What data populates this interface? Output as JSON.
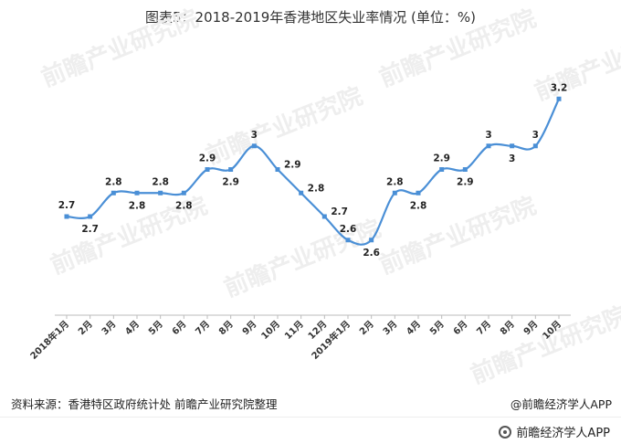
{
  "title": "图表5：2018-2019年香港地区失业率情况 (单位：%)",
  "source": "资料来源：香港特区政府统计处 前瞻产业研究院整理",
  "brand_right": "@前瞻经济学人APP",
  "footer_brand": "前瞻经济学人APP",
  "watermark": "前瞻产业研究院",
  "colors": {
    "line": "#4a8fd6",
    "label": "#222222",
    "axis": "#bbbbbb"
  },
  "chart_data": {
    "type": "line",
    "categories": [
      "2018年1月",
      "2月",
      "3月",
      "4月",
      "5月",
      "6月",
      "7月",
      "8月",
      "9月",
      "10月",
      "11月",
      "12月",
      "2019年1月",
      "2月",
      "3月",
      "4月",
      "5月",
      "6月",
      "7月",
      "8月",
      "9月",
      "10月"
    ],
    "series": [
      {
        "values": [
          2.7,
          2.7,
          2.8,
          2.8,
          2.8,
          2.8,
          2.9,
          2.9,
          3,
          2.9,
          2.8,
          2.7,
          2.6,
          2.6,
          2.8,
          2.8,
          2.9,
          2.9,
          3,
          3,
          3,
          3.2
        ]
      }
    ],
    "data_labels": [
      "2.7",
      "2.7",
      "2.8",
      "2.8",
      "2.8",
      "2.8",
      "2.9",
      "2.9",
      "3",
      "2.9",
      "2.8",
      "2.7",
      "2.6",
      "2.6",
      "2.8",
      "2.8",
      "2.9",
      "2.9",
      "3",
      "3",
      "3",
      "3.2"
    ],
    "label_positions": [
      "above",
      "below",
      "above",
      "below",
      "above",
      "below",
      "above",
      "below",
      "above",
      "right",
      "right",
      "right",
      "above",
      "below",
      "above",
      "below",
      "above",
      "below",
      "above",
      "below",
      "above",
      "above"
    ],
    "grid": false,
    "legend": "none"
  }
}
